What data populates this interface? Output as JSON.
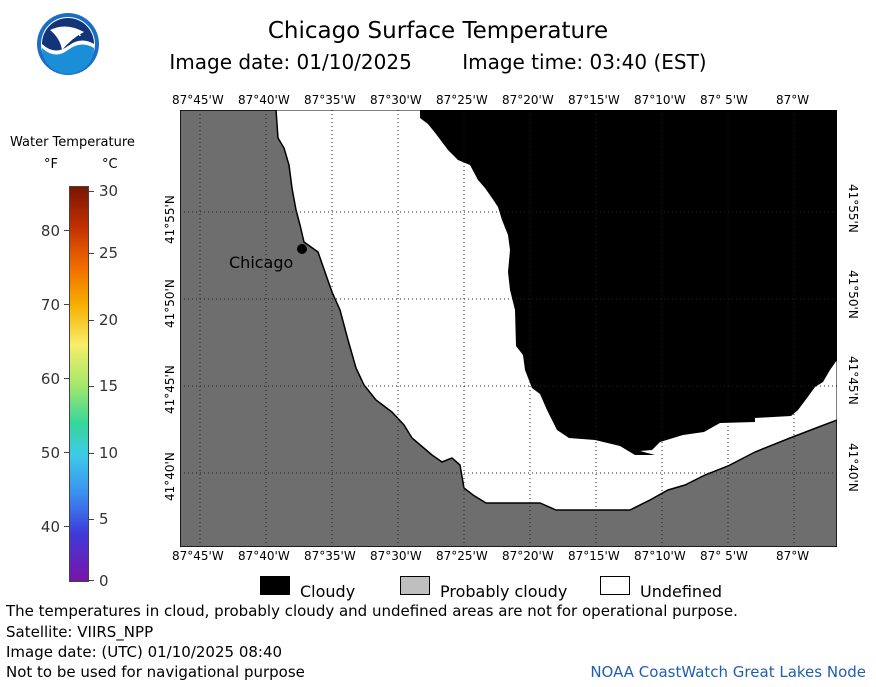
{
  "header": {
    "title": "Chicago Surface Temperature",
    "image_date": "Image date: 01/10/2025",
    "image_time": "Image time: 03:40 (EST)"
  },
  "logo": {
    "text": "NOAA"
  },
  "legend": {
    "title": "Water Temperature",
    "unit_f": "°F",
    "unit_c": "°C",
    "fahrenheit_ticks": [
      "80",
      "70",
      "60",
      "50",
      "40"
    ],
    "celsius_ticks": [
      "30",
      "25",
      "20",
      "15",
      "10",
      "5",
      "0"
    ]
  },
  "map": {
    "city_label": "Chicago",
    "lon_labels": [
      "87°45'W",
      "87°40'W",
      "87°35'W",
      "87°30'W",
      "87°25'W",
      "87°20'W",
      "87°15'W",
      "87°10'W",
      "87° 5'W",
      "87°W"
    ],
    "lat_labels": [
      "41°55'N",
      "41°50'N",
      "41°45'N",
      "41°40'N"
    ]
  },
  "key": {
    "cloudy": "Cloudy",
    "probably_cloudy": "Probably cloudy",
    "undefined": "Undefined"
  },
  "notes": {
    "disclaimer": "The temperatures in cloud, probably cloudy and undefined areas are not for operational purpose.",
    "satellite": "Satellite: VIIRS_NPP",
    "utc_date": "Image date: (UTC) 01/10/2025  08:40",
    "navigation": "Not to be used for navigational purpose"
  },
  "credit": "NOAA CoastWatch Great Lakes Node",
  "colors": {
    "land": "#6e6e6e",
    "cloudy": "#000000",
    "probably_cloudy": "#bfbfbf",
    "undefined": "#ffffff",
    "credit": "#1f5fb0"
  }
}
